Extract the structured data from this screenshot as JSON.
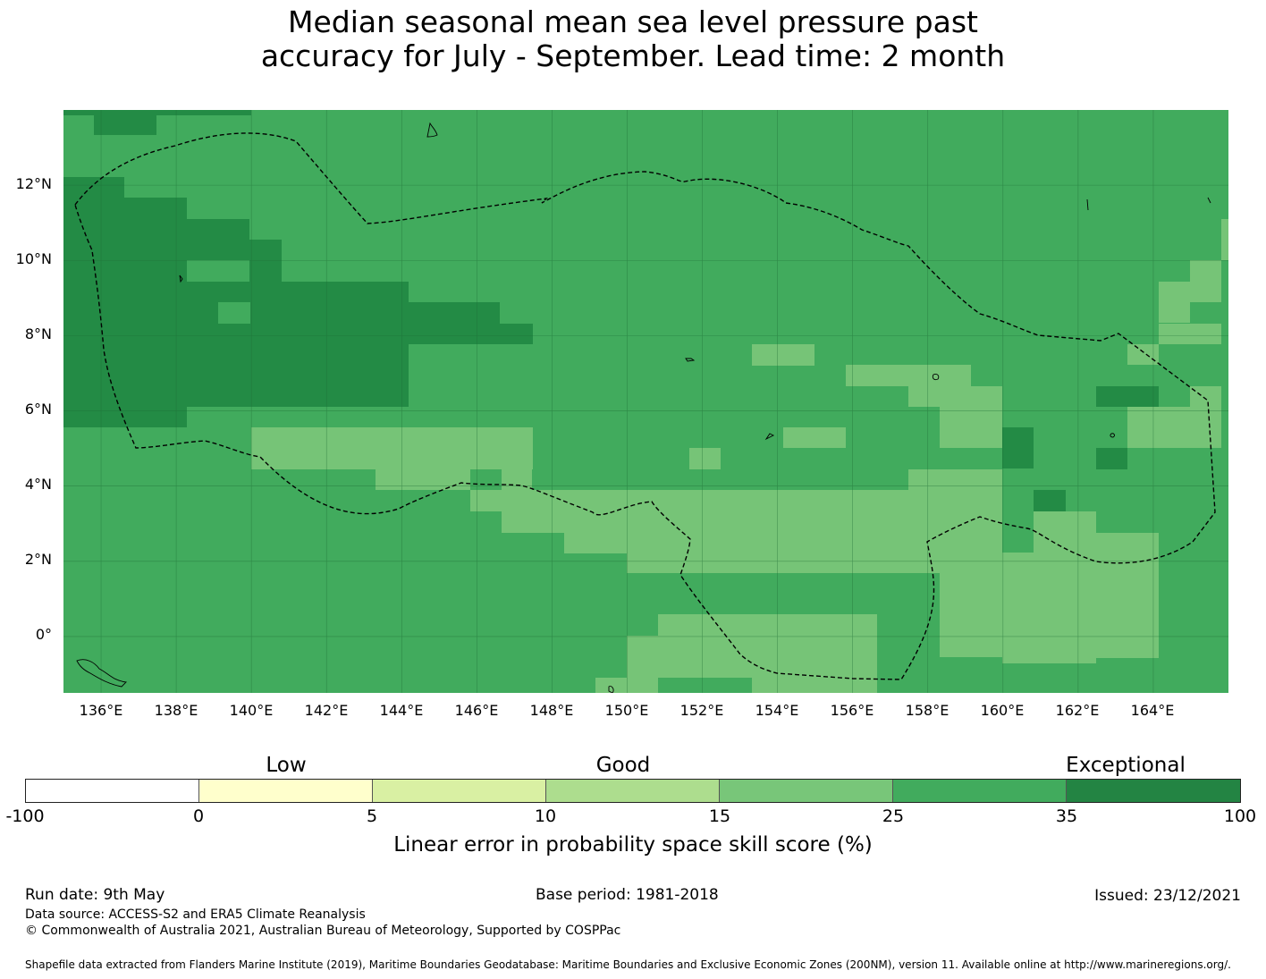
{
  "title": {
    "line1": "Median seasonal mean sea level pressure past",
    "line2": "accuracy for July - September. Lead time: 2 month"
  },
  "map": {
    "lat_labels": [
      "12°N",
      "10°N",
      "8°N",
      "6°N",
      "4°N",
      "2°N",
      "0°"
    ],
    "lon_labels": [
      "136°E",
      "138°E",
      "140°E",
      "142°E",
      "144°E",
      "146°E",
      "148°E",
      "150°E",
      "152°E",
      "154°E",
      "156°E",
      "158°E",
      "160°E",
      "162°E",
      "164°E"
    ],
    "extent": {
      "lon_min": 135,
      "lon_max": 166,
      "lat_min": -1.5,
      "lat_max": 14
    },
    "colors": {
      "c15_25": "#76c477",
      "c25_35": "#41ab5d",
      "c35_100": "#238b45"
    },
    "icon": "grid-heatmap-with-eez-boundary"
  },
  "legend": {
    "categories": [
      "Low",
      "Good",
      "Exceptional"
    ],
    "ticks": [
      "-100",
      "0",
      "5",
      "10",
      "15",
      "25",
      "35",
      "100"
    ],
    "colors": [
      "#ffffff",
      "#ffffcc",
      "#d9f0a3",
      "#addd8e",
      "#78c679",
      "#41ab5d",
      "#238443"
    ],
    "label": "Linear error in probability space skill score (%)"
  },
  "footer": {
    "run_date": "Run date: 9th May",
    "base_period": "Base period: 1981-2018",
    "issued": "Issued: 23/12/2021",
    "data_source": "Data source: ACCESS-S2 and ERA5 Climate Reanalysis",
    "copyright": "© Commonwealth of Australia 2021, Australian Bureau of Meteorology, Supported by COSPPac",
    "shapefile": "Shapefile data extracted from Flanders Marine Institute (2019), Maritime Boundaries Geodatabase: Maritime Boundaries and Exclusive Economic Zones (200NM), version 11. Available online at http://www.marineregions.org/."
  }
}
